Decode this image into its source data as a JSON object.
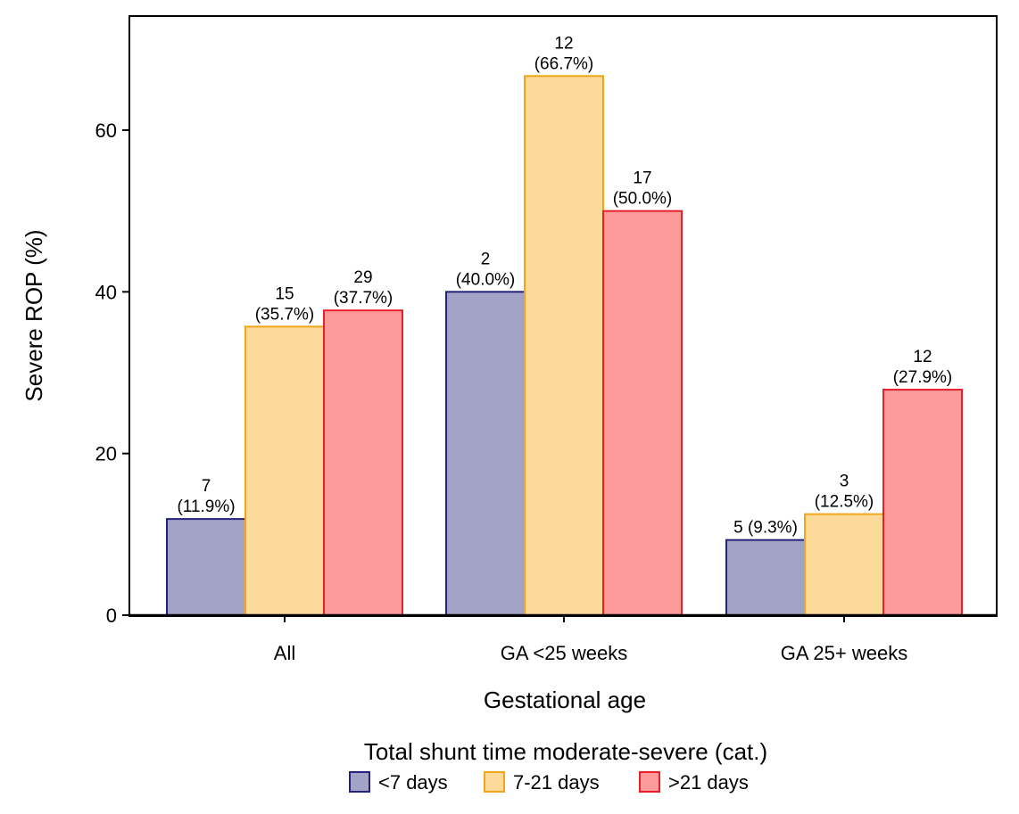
{
  "chart_data": {
    "type": "bar",
    "title": "",
    "xlabel": "Gestational age",
    "ylabel": "Severe ROP (%)",
    "ylim": [
      0,
      72
    ],
    "yticks": [
      0,
      20,
      40,
      60
    ],
    "grid": false,
    "categories": [
      "All",
      "GA <25 weeks",
      "GA 25+ weeks"
    ],
    "series": [
      {
        "name": "<7 days",
        "color": "#a3a3c7",
        "edge": "#23237a",
        "values": [
          11.9,
          40.0,
          9.3
        ],
        "labels": [
          [
            "7",
            "(11.9%)"
          ],
          [
            "2",
            "(40.0%)"
          ],
          [
            "5 (9.3%)"
          ]
        ]
      },
      {
        "name": "7-21 days",
        "color": "#fdd99a",
        "edge": "#f0a61c",
        "values": [
          35.7,
          66.7,
          12.5
        ],
        "labels": [
          [
            "15",
            "(35.7%)"
          ],
          [
            "12",
            "(66.7%)"
          ],
          [
            "3",
            "(12.5%)"
          ]
        ]
      },
      {
        "name": ">21 days",
        "color": "#fd9a9a",
        "edge": "#e8202a",
        "values": [
          37.7,
          50.0,
          27.9
        ],
        "labels": [
          [
            "29",
            "(37.7%)"
          ],
          [
            "17",
            "(50.0%)"
          ],
          [
            "12",
            "(27.9%)"
          ]
        ]
      }
    ],
    "legend": {
      "title": "Total shunt time moderate-severe (cat.)",
      "placement": "bottom-center"
    }
  }
}
